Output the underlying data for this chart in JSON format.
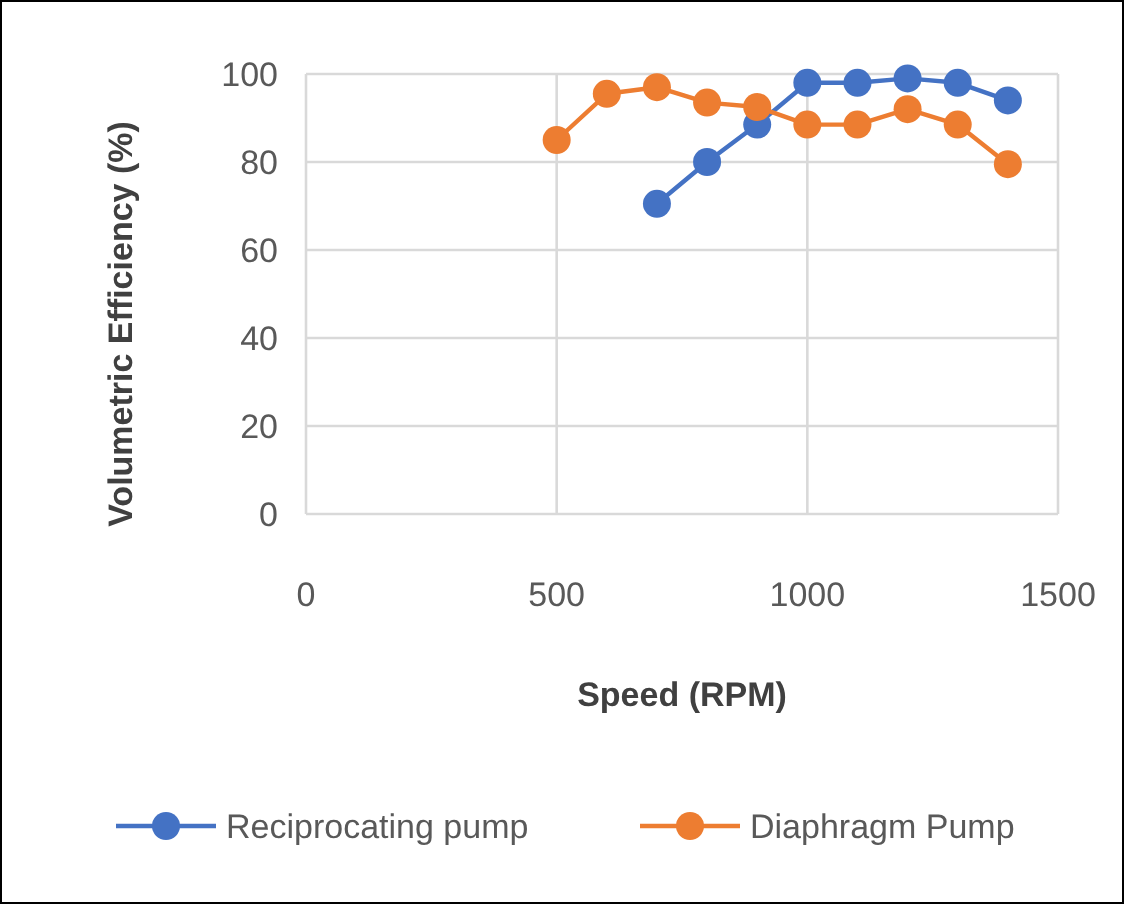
{
  "chart_data": {
    "type": "line",
    "xlabel": "Speed (RPM)",
    "ylabel": "Volumetric Efficiency (%)",
    "xlim": [
      0,
      1500
    ],
    "xticks": [
      0,
      500,
      1000,
      1500
    ],
    "ylim": [
      0,
      100
    ],
    "yticks": [
      0,
      20,
      40,
      60,
      80,
      100
    ],
    "grid": true,
    "legend": "bottom",
    "marker": "circle",
    "series": [
      {
        "name": "Reciprocating pump",
        "color": "#4472c4",
        "x": [
          700,
          800,
          900,
          1000,
          1100,
          1200,
          1300,
          1400
        ],
        "values": [
          70.5,
          80,
          88.5,
          98,
          98,
          99,
          98,
          94
        ]
      },
      {
        "name": "Diaphragm Pump",
        "color": "#ed7d31",
        "x": [
          500,
          600,
          700,
          800,
          900,
          1000,
          1100,
          1200,
          1300,
          1400
        ],
        "values": [
          85,
          95.5,
          97,
          93.5,
          92.5,
          88.5,
          88.5,
          92,
          88.5,
          79.5
        ]
      }
    ]
  }
}
